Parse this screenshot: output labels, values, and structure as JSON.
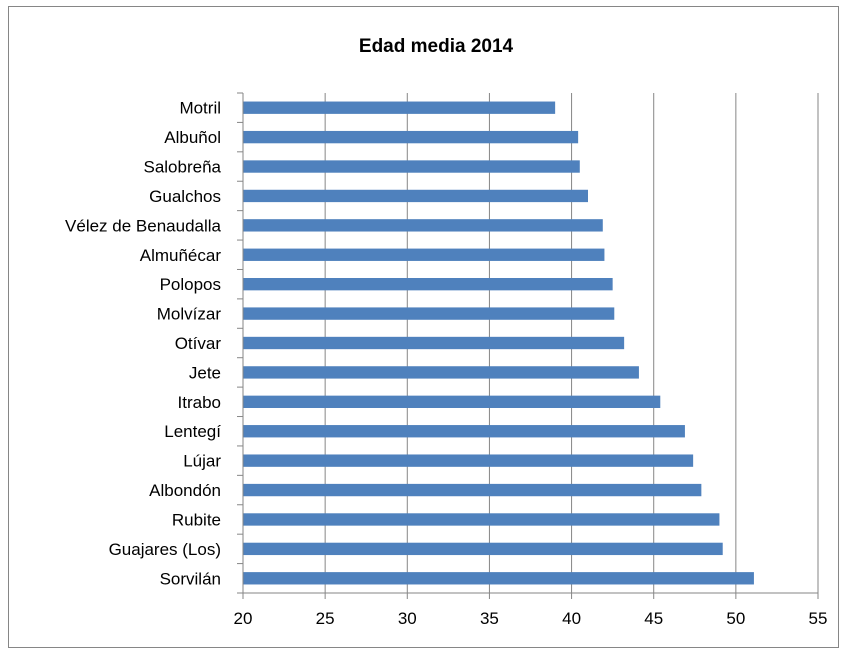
{
  "chart_data": {
    "type": "bar",
    "orientation": "horizontal",
    "title": "Edad media 2014",
    "xlabel": "",
    "ylabel": "",
    "categories": [
      "Motril",
      "Albuñol",
      "Salobreña",
      "Gualchos",
      "Vélez de Benaudalla",
      "Almuñécar",
      "Polopos",
      "Molvízar",
      "Otívar",
      "Jete",
      "Itrabo",
      "Lentegí",
      "Lújar",
      "Albondón",
      "Rubite",
      "Guajares (Los)",
      "Sorvilán"
    ],
    "values": [
      39.0,
      40.4,
      40.5,
      41.0,
      41.9,
      42.0,
      42.5,
      42.6,
      43.2,
      44.1,
      45.4,
      46.9,
      47.4,
      47.9,
      49.0,
      49.2,
      51.1
    ],
    "xlim": [
      20,
      55
    ],
    "xticks": [
      20,
      25,
      30,
      35,
      40,
      45,
      50,
      55
    ],
    "grid": true,
    "legend": "none",
    "bar_color": "#4f81bd",
    "grid_color": "#868686"
  }
}
